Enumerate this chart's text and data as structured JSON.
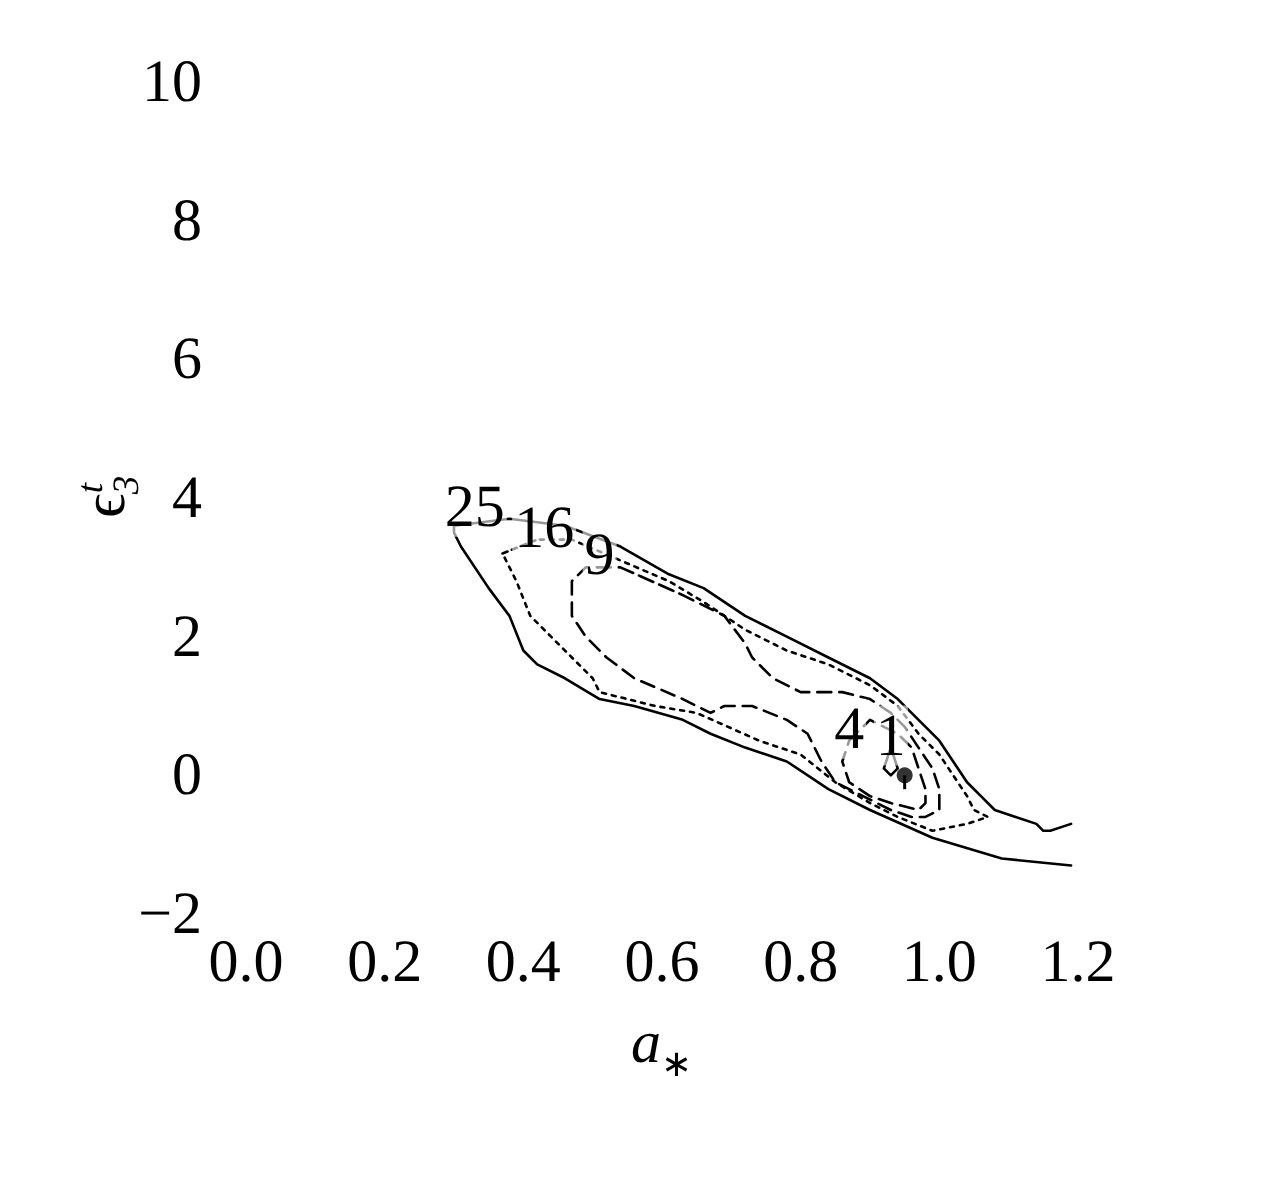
{
  "chart_data": {
    "type": "line",
    "xlabel": "a$_{∗}$",
    "ylabel": "ϵ$^{t}$$_{3}$",
    "xlim": [
      0,
      1.2
    ],
    "xticks": [
      {
        "value": 0,
        "label": "0.0"
      },
      0.2,
      0.4,
      0.6,
      0.8,
      {
        "value": 1,
        "label": "1.0"
      },
      1.2
    ],
    "ylim": [
      -2,
      10
    ],
    "yticks": [
      {
        "value": -2,
        "label": "−2"
      },
      0,
      2,
      4,
      6,
      8,
      10
    ],
    "series": [
      {
        "color": "#000000",
        "line_style": "solid",
        "x": [
          1.19,
          1.16,
          1.15,
          1.14,
          1.11,
          1.08,
          1.06,
          1.04,
          1.02,
          1.0,
          0.97,
          0.94,
          0.9,
          0.84,
          0.78,
          0.72,
          0.66,
          0.61,
          0.54,
          0.46,
          0.38,
          0.3,
          0.3,
          0.31,
          0.35,
          0.38,
          0.4,
          0.42,
          0.46,
          0.51,
          0.56,
          0.63,
          0.67,
          0.72,
          0.78,
          0.84,
          0.9,
          0.99,
          1.09,
          1.19
        ],
        "values": [
          -0.7,
          -0.8,
          -0.8,
          -0.7,
          -0.6,
          -0.5,
          -0.3,
          -0.1,
          0.2,
          0.5,
          0.8,
          1.1,
          1.4,
          1.7,
          2.0,
          2.3,
          2.7,
          2.9,
          3.3,
          3.6,
          3.7,
          3.6,
          3.5,
          3.3,
          2.7,
          2.3,
          1.8,
          1.6,
          1.4,
          1.1,
          1.0,
          0.8,
          0.6,
          0.4,
          0.2,
          -0.2,
          -0.5,
          -0.9,
          -1.2,
          -1.3
        ]
      },
      {
        "color": "#000000",
        "line_style": "dotted",
        "x": [
          0.37,
          0.42,
          0.47,
          0.54,
          0.61,
          0.66,
          0.72,
          0.78,
          0.84,
          0.9,
          0.94,
          0.97,
          1.0,
          1.02,
          1.04,
          1.05,
          1.07,
          1.04,
          0.99,
          0.94,
          0.9,
          0.85,
          0.8,
          0.74,
          0.65,
          0.59,
          0.51,
          0.5,
          0.47,
          0.44,
          0.41,
          0.39,
          0.37,
          0.42
        ],
        "values": [
          3.2,
          3.4,
          3.4,
          3.1,
          2.8,
          2.5,
          2.1,
          1.8,
          1.6,
          1.3,
          1.0,
          0.6,
          0.3,
          0.0,
          -0.3,
          -0.5,
          -0.6,
          -0.7,
          -0.8,
          -0.6,
          -0.4,
          -0.1,
          0.3,
          0.5,
          0.9,
          1.0,
          1.2,
          1.4,
          1.7,
          2.0,
          2.3,
          2.8,
          3.2,
          3.4
        ]
      },
      {
        "color": "#000000",
        "line_style": "dashed",
        "x": [
          0.54,
          0.63,
          0.69,
          0.72,
          0.73,
          0.76,
          0.8,
          0.86,
          0.9,
          0.93,
          0.95,
          0.97,
          0.99,
          1.0,
          1.0,
          0.98,
          0.96,
          0.93,
          0.89,
          0.85,
          0.83,
          0.81,
          0.78,
          0.73,
          0.69,
          0.67,
          0.63,
          0.56,
          0.52,
          0.49,
          0.47,
          0.47,
          0.49,
          0.54,
          0.63
        ],
        "values": [
          3.0,
          2.6,
          2.3,
          1.9,
          1.7,
          1.4,
          1.2,
          1.2,
          1.1,
          0.9,
          0.7,
          0.4,
          0.1,
          -0.2,
          -0.5,
          -0.6,
          -0.6,
          -0.5,
          -0.3,
          -0.1,
          0.2,
          0.6,
          0.8,
          1.0,
          1.0,
          0.9,
          1.1,
          1.4,
          1.7,
          2.0,
          2.3,
          2.8,
          3.0,
          3.0,
          2.6
        ]
      },
      {
        "color": "#000000",
        "line_style": "dashed",
        "x": [
          0.88,
          0.87,
          0.86,
          0.87,
          0.9,
          0.93,
          0.97,
          0.98,
          0.98,
          0.97,
          0.96,
          0.94,
          0.9,
          0.88,
          0.87
        ],
        "values": [
          0.6,
          0.5,
          0.2,
          -0.1,
          -0.3,
          -0.4,
          -0.5,
          -0.4,
          -0.2,
          0.1,
          0.4,
          0.6,
          0.8,
          0.6,
          0.5
        ]
      },
      {
        "color": "#000000",
        "line_style": "solid",
        "x": [
          0.93,
          0.92,
          0.93,
          0.94,
          0.93,
          0.92
        ],
        "values": [
          0.4,
          0.1,
          0.0,
          0.1,
          0.4,
          0.1
        ]
      },
      {
        "type": "scatter",
        "marker": "circle",
        "color": "#000000",
        "x": [
          0.95
        ],
        "values": [
          0.0
        ],
        "errors": [
          [
            -0.2,
            0.0
          ]
        ]
      }
    ],
    "annotations": [
      {
        "text": "25",
        "x": 0.33,
        "y": 3.7
      },
      {
        "text": "16",
        "x": 0.43,
        "y": 3.4
      },
      {
        "text": "9",
        "x": 0.51,
        "y": 3.0
      },
      {
        "text": "4",
        "x": 0.87,
        "y": 0.5
      },
      {
        "text": "1",
        "x": 0.93,
        "y": 0.4
      }
    ]
  }
}
